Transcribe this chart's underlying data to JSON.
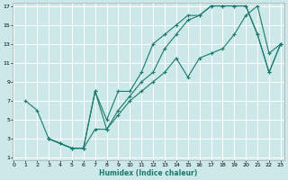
{
  "xlabel": "Humidex (Indice chaleur)",
  "bg_color": "#cce8e8",
  "grid_color": "#ffffff",
  "line_color": "#1a7a6e",
  "xlim": [
    0,
    23
  ],
  "ylim": [
    1,
    17
  ],
  "xticks": [
    0,
    1,
    2,
    3,
    4,
    5,
    6,
    7,
    8,
    9,
    10,
    11,
    12,
    13,
    14,
    15,
    16,
    17,
    18,
    19,
    20,
    21,
    22,
    23
  ],
  "yticks": [
    1,
    3,
    5,
    7,
    9,
    11,
    13,
    15,
    17
  ],
  "line1_x": [
    1,
    2,
    3,
    4,
    5,
    6,
    7,
    8,
    9,
    10,
    11,
    12,
    13,
    14,
    15,
    16,
    17,
    18,
    19,
    20,
    21,
    22,
    23
  ],
  "line1_y": [
    7,
    6,
    3,
    2.5,
    2,
    2,
    8,
    5,
    8,
    8,
    10,
    13,
    14,
    15,
    16,
    16,
    17,
    17,
    17,
    17,
    14,
    10,
    13
  ],
  "line2_x": [
    3,
    4,
    5,
    6,
    7,
    8,
    9,
    10,
    11,
    12,
    13,
    14,
    15,
    16,
    17,
    18,
    19,
    20,
    21,
    22,
    23
  ],
  "line2_y": [
    3,
    2.5,
    2,
    2,
    4,
    4,
    5.5,
    7,
    8,
    9,
    10,
    11.5,
    9.5,
    11.5,
    12,
    12.5,
    14,
    16,
    17,
    12,
    13
  ],
  "line3_x": [
    3,
    5,
    6,
    7,
    8,
    9,
    10,
    11,
    12,
    13,
    14,
    15,
    16,
    17,
    18,
    19,
    20,
    21,
    22,
    23
  ],
  "line3_y": [
    3,
    2,
    2,
    8,
    4,
    6,
    7.5,
    9,
    10,
    12.5,
    14,
    15.5,
    16,
    17,
    17,
    17,
    17,
    14,
    10,
    13
  ]
}
